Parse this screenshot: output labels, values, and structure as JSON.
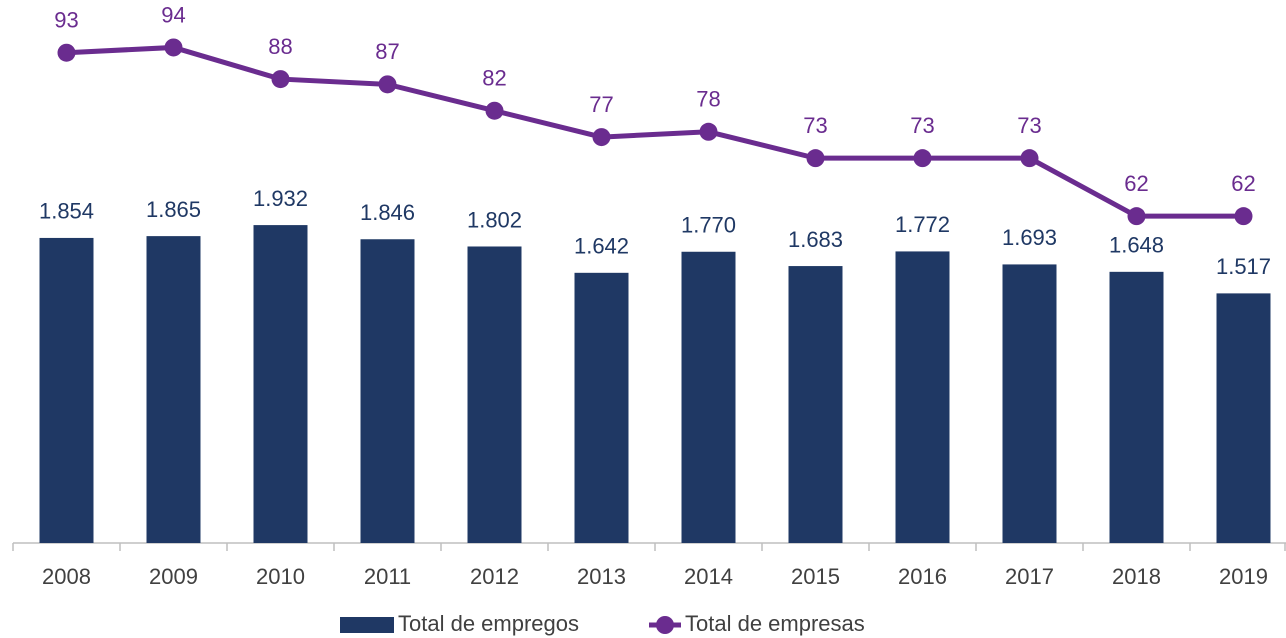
{
  "chart_data": {
    "type": "bar_line",
    "categories": [
      "2008",
      "2009",
      "2010",
      "2011",
      "2012",
      "2013",
      "2014",
      "2015",
      "2016",
      "2017",
      "2018",
      "2019"
    ],
    "series": [
      {
        "name": "Total de empregos",
        "type": "bar",
        "color": "#1f3864",
        "values": [
          1854,
          1865,
          1932,
          1846,
          1802,
          1642,
          1770,
          1683,
          1772,
          1693,
          1648,
          1517
        ],
        "value_labels": [
          "1.854",
          "1.865",
          "1.932",
          "1.846",
          "1.802",
          "1.642",
          "1.770",
          "1.683",
          "1.772",
          "1.693",
          "1.648",
          "1.517"
        ]
      },
      {
        "name": "Total de empresas",
        "type": "line",
        "axis": "y2",
        "color": "#6a2c8f",
        "values": [
          93,
          94,
          88,
          87,
          82,
          77,
          78,
          73,
          73,
          73,
          62,
          62
        ]
      }
    ],
    "ylim": [
      0,
      3300
    ],
    "y2lim": [
      0,
      103
    ],
    "legend": "bottom"
  }
}
